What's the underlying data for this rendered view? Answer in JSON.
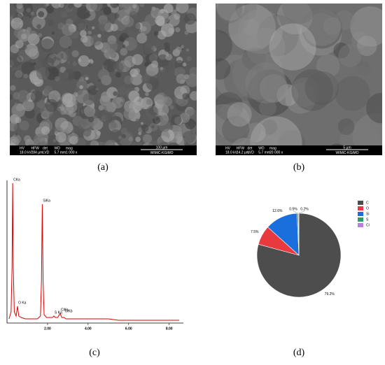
{
  "images": [
    {
      "info_headers": [
        "HV",
        "HFW",
        "det",
        "WD",
        "mag"
      ],
      "info_values": [
        "18.0 kV",
        "284 µm",
        "LVD",
        "5.7 mm",
        "1 000 x"
      ],
      "scale": "100 µm",
      "lab": "WIMiC-KGiMO"
    },
    {
      "info_headers": [
        "HV",
        "HFW",
        "det",
        "WD",
        "mag"
      ],
      "info_values": [
        "18.0 kV",
        "14.2 µm",
        "LVD",
        "5.7 mm",
        "20 000 x"
      ],
      "scale": "5 µm",
      "lab": "WIMiC-KGiMO"
    }
  ],
  "captions": [
    "(a)",
    "(b)",
    "(c)",
    "(d)"
  ],
  "chart_data": [
    {
      "type": "line",
      "color": "#e00000",
      "x": [
        0.1,
        0.2,
        0.25,
        0.28,
        0.31,
        0.36,
        0.45,
        0.52,
        0.58,
        0.7,
        0.9,
        1.2,
        1.5,
        1.65,
        1.7,
        1.74,
        1.78,
        1.83,
        1.95,
        2.1,
        2.25,
        2.31,
        2.38,
        2.5,
        2.62,
        2.7,
        2.82,
        2.9,
        3.2,
        3.6,
        4.0,
        4.5,
        5,
        5.5,
        6,
        6.5,
        7,
        7.5,
        8,
        8.5
      ],
      "values": [
        3,
        8,
        40,
        100,
        40,
        8,
        5,
        12,
        5,
        4,
        3,
        3,
        3,
        5,
        30,
        85,
        30,
        6,
        4,
        4,
        4,
        5,
        4,
        4,
        7,
        4,
        4,
        3,
        3,
        3,
        3,
        3,
        3,
        2,
        2,
        2,
        2,
        2,
        2,
        2
      ],
      "xlim": [
        0,
        8.7
      ],
      "ylim": [
        0,
        100
      ],
      "xticks": [
        {
          "value": 2,
          "label": "2.00"
        },
        {
          "value": 4,
          "label": "4.00"
        },
        {
          "value": 6,
          "label": "6.00"
        },
        {
          "value": 8,
          "label": "8.00"
        }
      ],
      "annotations": [
        {
          "text": "CKa",
          "x": 0.28
        },
        {
          "text": "O Ka",
          "x": 0.52
        },
        {
          "text": "SiKa",
          "x": 1.74
        },
        {
          "text": "S Ka",
          "x": 2.31
        },
        {
          "text": "ClKa",
          "x": 2.62
        },
        {
          "text": "ClKb",
          "x": 2.82
        }
      ]
    },
    {
      "type": "pie",
      "categories": [
        "C",
        "O",
        "Si",
        "S",
        "Cl"
      ],
      "values": [
        79.2,
        7.5,
        12.6,
        0.5,
        0.2
      ],
      "value_labels": [
        "79.2%",
        "7.5%",
        "12.6%",
        "0.5%",
        "0.2%"
      ],
      "colors": [
        "#4d4d4d",
        "#e8393f",
        "#1a6fdc",
        "#2a9d6a",
        "#b77fe0"
      ],
      "legend": "right"
    }
  ]
}
